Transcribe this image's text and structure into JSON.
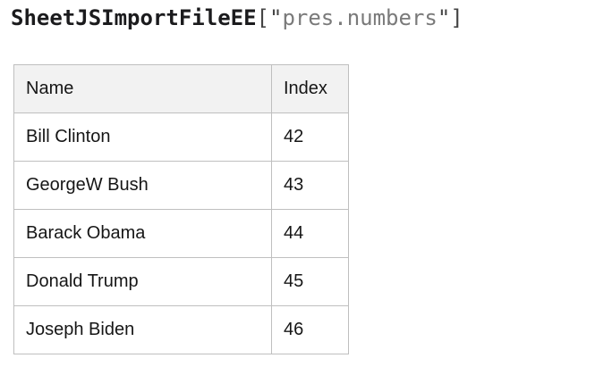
{
  "title": {
    "component": "SheetJSImportFileEE",
    "open_punct": "[\"",
    "file_name": "pres.numbers",
    "close_punct": "\"]"
  },
  "table": {
    "columns": {
      "name": "Name",
      "index": "Index"
    },
    "rows": [
      {
        "name": "Bill Clinton",
        "index": "42"
      },
      {
        "name": "GeorgeW Bush",
        "index": "43"
      },
      {
        "name": "Barack Obama",
        "index": "44"
      },
      {
        "name": "Donald Trump",
        "index": "45"
      },
      {
        "name": "Joseph Biden",
        "index": "46"
      }
    ]
  },
  "colors": {
    "title_component": "#1b1b1d",
    "title_punctuation": "#454545",
    "title_string": "#7a7a7a",
    "table_header_bg": "#f2f2f2",
    "table_border": "#bfbfbf",
    "table_text": "#161616",
    "page_bg": "#ffffff"
  }
}
